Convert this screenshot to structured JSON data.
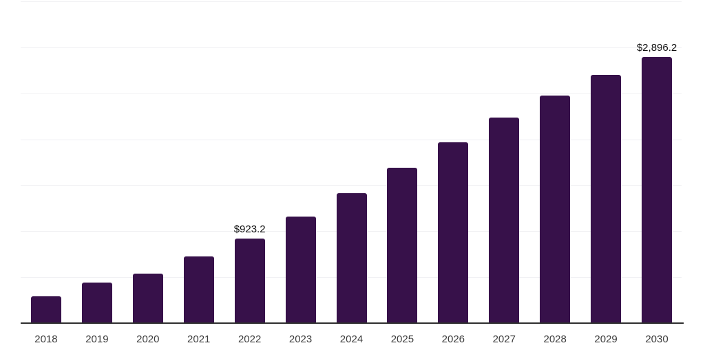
{
  "chart_data": {
    "type": "bar",
    "title": "",
    "xlabel": "",
    "ylabel": "",
    "categories": [
      "2018",
      "2019",
      "2020",
      "2021",
      "2022",
      "2023",
      "2024",
      "2025",
      "2026",
      "2027",
      "2028",
      "2029",
      "2030"
    ],
    "values": [
      290,
      438,
      538,
      726,
      923.2,
      1156,
      1414,
      1689,
      1965,
      2235,
      2477,
      2702,
      2896.2
    ],
    "value_labels": [
      {
        "index": 4,
        "text": "$923.2"
      },
      {
        "index": 12,
        "text": "$2,896.2"
      }
    ],
    "ylim": [
      0,
      3500
    ],
    "gridline_values": [
      500,
      1000,
      1500,
      2000,
      2500,
      3000,
      3500
    ],
    "grid": true,
    "legend": "none",
    "y_axis_tick_labels_visible": false,
    "colors": {
      "bar": "#37114A",
      "axis": "#2E2E2E",
      "gridline": "#F0F0F3",
      "tick_label": "#3D3D3D",
      "value_label": "#111111",
      "background": "#FFFFFF"
    }
  }
}
